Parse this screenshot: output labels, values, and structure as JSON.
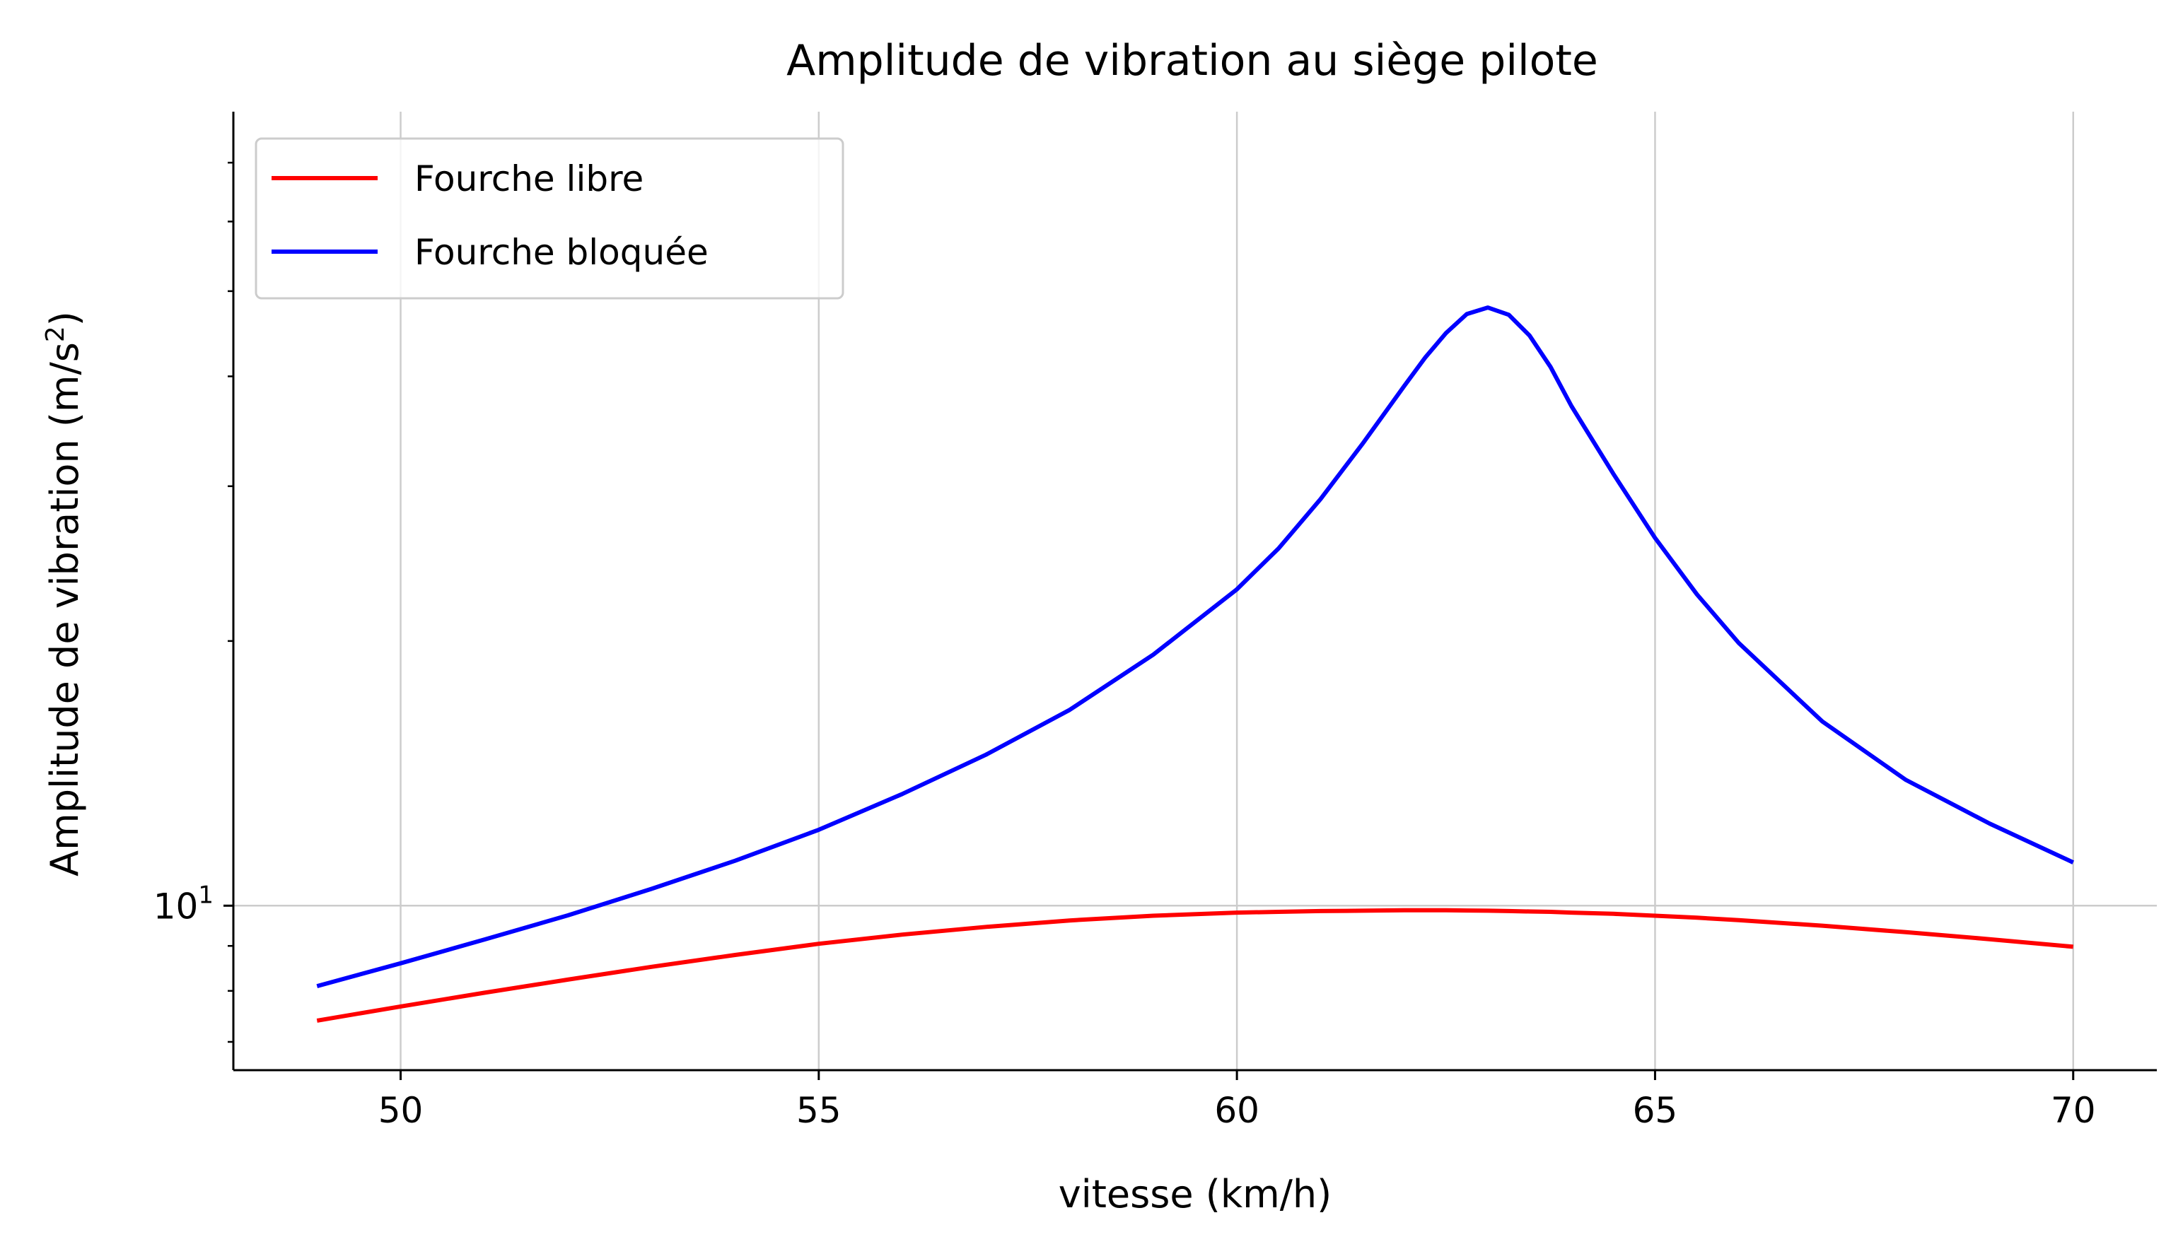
{
  "chart_data": {
    "type": "line",
    "title": "Amplitude de vibration au siège pilote",
    "xlabel": "vitesse (km/h)",
    "ylabel_main": "Amplitude de vibration (m/s",
    "ylabel_sup": "2",
    "ylabel_close": ")",
    "xlim": [
      48,
      71
    ],
    "ylim": [
      6.5,
      80
    ],
    "yscale": "log",
    "grid": true,
    "legend_position": "top-left",
    "x_ticks": [
      50,
      55,
      60,
      65,
      70
    ],
    "x_tick_labels": [
      "50",
      "55",
      "60",
      "65",
      "70"
    ],
    "y_tick_major": [
      {
        "value": 10,
        "base": "10",
        "exp": "1"
      }
    ],
    "y_minor_ticks": [
      7,
      8,
      9,
      20,
      30,
      40,
      50,
      60,
      70
    ],
    "x": [
      49,
      50,
      51,
      52,
      53,
      54,
      55,
      56,
      57,
      58,
      59,
      60,
      60.5,
      61,
      61.5,
      62,
      62.25,
      62.5,
      62.75,
      63,
      63.25,
      63.5,
      63.75,
      64,
      64.5,
      65,
      65.5,
      66,
      67,
      68,
      69,
      70
    ],
    "series": [
      {
        "name": "Fourche libre",
        "color": "#ff0000",
        "values": [
          7.4,
          7.68,
          7.96,
          8.24,
          8.52,
          8.79,
          9.05,
          9.27,
          9.46,
          9.62,
          9.74,
          9.82,
          9.84,
          9.86,
          9.87,
          9.88,
          9.88,
          9.88,
          9.875,
          9.87,
          9.86,
          9.85,
          9.84,
          9.82,
          9.79,
          9.74,
          9.69,
          9.63,
          9.49,
          9.33,
          9.16,
          8.98
        ]
      },
      {
        "name": "Fourche bloquée",
        "color": "#0000ff",
        "values": [
          8.1,
          8.6,
          9.15,
          9.75,
          10.45,
          11.25,
          12.2,
          13.4,
          14.85,
          16.7,
          19.3,
          22.9,
          25.5,
          29.0,
          33.5,
          39.0,
          42.0,
          44.8,
          47.1,
          47.9,
          47.0,
          44.5,
          41.0,
          37.0,
          31.0,
          26.2,
          22.6,
          19.9,
          16.2,
          13.9,
          12.4,
          11.2
        ]
      }
    ]
  }
}
